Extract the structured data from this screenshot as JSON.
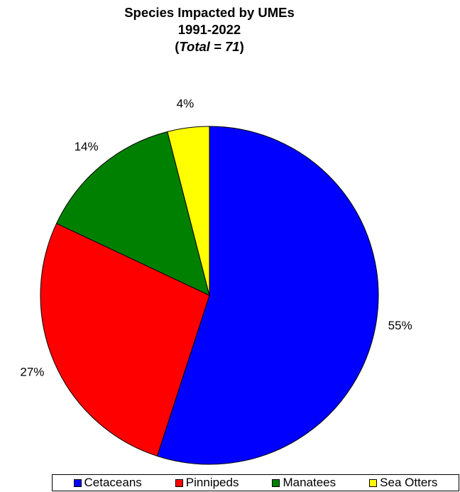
{
  "chart_data": {
    "type": "pie",
    "title": {
      "line1": "Species Impacted by UMEs",
      "line2": "1991-2022",
      "line3_open": "(",
      "line3_italic": "Total = 71",
      "line3_close": ")"
    },
    "slices": [
      {
        "name": "Cetaceans",
        "value": 55,
        "label": "55%",
        "color": "#0000ff"
      },
      {
        "name": "Pinnipeds",
        "value": 27,
        "label": "27%",
        "color": "#ff0000"
      },
      {
        "name": "Manatees",
        "value": 14,
        "label": "14%",
        "color": "#008000"
      },
      {
        "name": "Sea Otters",
        "value": 4,
        "label": "4%",
        "color": "#ffff00"
      }
    ],
    "legend_position": "bottom"
  }
}
